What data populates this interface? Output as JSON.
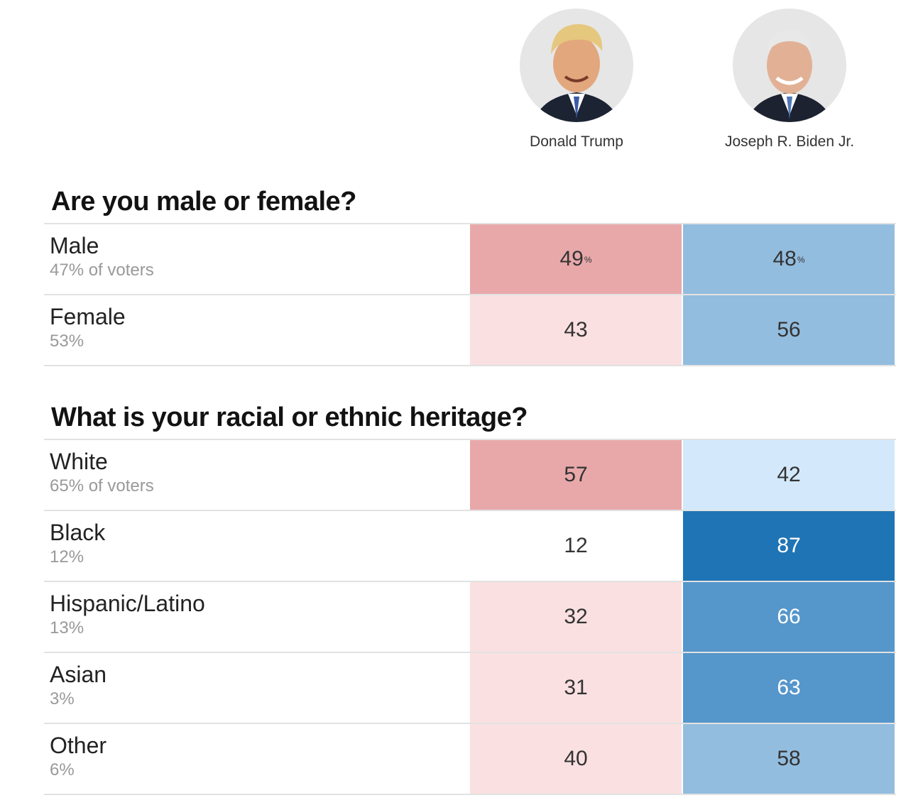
{
  "candidates": [
    {
      "name": "Donald Trump",
      "photo_icon": "trump-portrait-icon"
    },
    {
      "name": "Joseph R. Biden Jr.",
      "photo_icon": "biden-portrait-icon"
    }
  ],
  "colors": {
    "rep_strong": "#e8a8aa",
    "rep_light": "#fae0e1",
    "dem_light": "#d3e9fb",
    "dem_mid": "#93bddf",
    "dem_strong": "#5596cb",
    "dem_darkest": "#1f74b5",
    "neutral": "#ffffff"
  },
  "questions": [
    {
      "title": "Are you male or female?",
      "rows": [
        {
          "label": "Male",
          "share": "47% of voters",
          "trump": "49",
          "biden": "48",
          "show_pct": true,
          "trump_color": "#e8a8aa",
          "biden_color": "#93bddf",
          "biden_dark": false
        },
        {
          "label": "Female",
          "share": "53%",
          "trump": "43",
          "biden": "56",
          "show_pct": false,
          "trump_color": "#fae0e1",
          "biden_color": "#93bddf",
          "biden_dark": false
        }
      ]
    },
    {
      "title": "What is your racial or ethnic heritage?",
      "rows": [
        {
          "label": "White",
          "share": "65% of voters",
          "trump": "57",
          "biden": "42",
          "show_pct": false,
          "trump_color": "#e8a8aa",
          "biden_color": "#d3e9fb",
          "biden_dark": false
        },
        {
          "label": "Black",
          "share": "12%",
          "trump": "12",
          "biden": "87",
          "show_pct": false,
          "trump_color": "#ffffff",
          "biden_color": "#1f74b5",
          "biden_dark": true
        },
        {
          "label": "Hispanic/Latino",
          "share": "13%",
          "trump": "32",
          "biden": "66",
          "show_pct": false,
          "trump_color": "#fae0e1",
          "biden_color": "#5596cb",
          "biden_dark": true
        },
        {
          "label": "Asian",
          "share": "3%",
          "trump": "31",
          "biden": "63",
          "show_pct": false,
          "trump_color": "#fae0e1",
          "biden_color": "#5596cb",
          "biden_dark": true
        },
        {
          "label": "Other",
          "share": "6%",
          "trump": "40",
          "biden": "58",
          "show_pct": false,
          "trump_color": "#fae0e1",
          "biden_color": "#93bddf",
          "biden_dark": false
        }
      ]
    }
  ],
  "pct_symbol": "%"
}
